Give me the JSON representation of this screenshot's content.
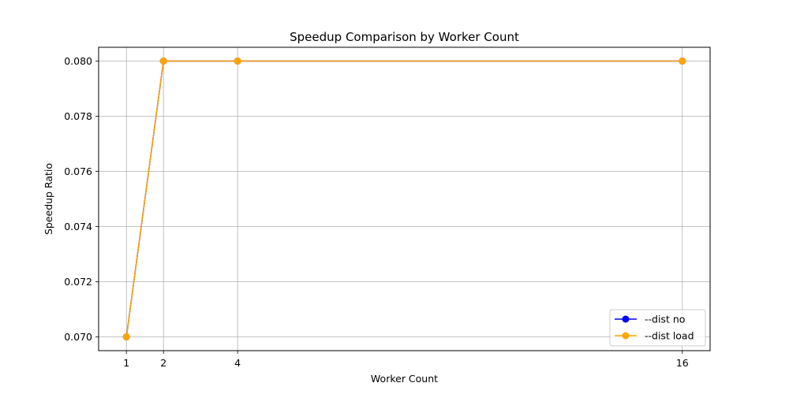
{
  "chart_data": {
    "type": "line",
    "title": "Speedup Comparison by Worker Count",
    "xlabel": "Worker Count",
    "ylabel": "Speedup Ratio",
    "x": [
      1,
      2,
      4,
      16
    ],
    "x_tick_labels": [
      "1",
      "2",
      "4",
      "16"
    ],
    "xlim": [
      0.25,
      16.75
    ],
    "ylim": [
      0.0695,
      0.0805
    ],
    "y_ticks": [
      0.07,
      0.072,
      0.074,
      0.076,
      0.078,
      0.08
    ],
    "y_tick_labels": [
      "0.070",
      "0.072",
      "0.074",
      "0.076",
      "0.078",
      "0.080"
    ],
    "grid": true,
    "legend_position": "lower-right",
    "series": [
      {
        "name": "--dist no",
        "color": "#0000ff",
        "marker": "circle",
        "values": [
          0.07,
          0.08,
          0.08,
          0.08
        ]
      },
      {
        "name": "--dist load",
        "color": "#ffa500",
        "marker": "circle",
        "values": [
          0.07,
          0.08,
          0.08,
          0.08
        ]
      }
    ]
  }
}
